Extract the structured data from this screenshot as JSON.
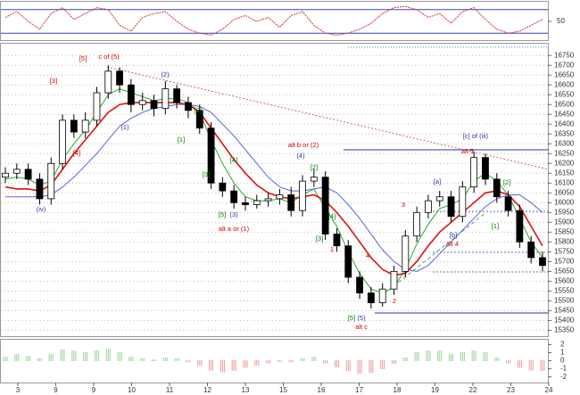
{
  "chart_data": [
    {
      "type": "line",
      "values": [
        60,
        75,
        50,
        30,
        70,
        85,
        55,
        70,
        85,
        80,
        40,
        25,
        60,
        70,
        75,
        50,
        30,
        20,
        15,
        30,
        55,
        65,
        50,
        60,
        35,
        65,
        75,
        40,
        20,
        15,
        20,
        30,
        45,
        70,
        85,
        88,
        80,
        60,
        70,
        45,
        75,
        85,
        55,
        30,
        20,
        25,
        40,
        55
      ],
      "color": "#d03030",
      "levels": [
        20,
        80
      ],
      "ylim": [
        0,
        100
      ],
      "yticks": [
        50
      ]
    },
    {
      "type": "candlestick",
      "open": [
        16130,
        16150,
        16170,
        16120,
        16020,
        16200,
        16420,
        16360,
        16420,
        16560,
        16670,
        16600,
        16500,
        16520,
        16480,
        16580,
        16510,
        16470,
        16380,
        16100,
        16060,
        16000,
        15990,
        16010,
        16020,
        16040,
        15960,
        16110,
        16130,
        15840,
        15780,
        15620,
        15540,
        15490,
        15560,
        15650,
        15830,
        15950,
        16010,
        16030,
        15930,
        16080,
        16230,
        16120,
        16030,
        15960,
        15800,
        15720
      ],
      "high": [
        16180,
        16200,
        16200,
        16150,
        16230,
        16450,
        16450,
        16460,
        16590,
        16700,
        16690,
        16630,
        16560,
        16550,
        16620,
        16600,
        16540,
        16500,
        16410,
        16130,
        16090,
        16030,
        16040,
        16050,
        16070,
        16080,
        16140,
        16170,
        16160,
        15870,
        15810,
        15650,
        15570,
        15590,
        15680,
        15860,
        15980,
        16040,
        16060,
        16060,
        16110,
        16260,
        16250,
        16150,
        16060,
        15990,
        15830,
        15750
      ],
      "low": [
        16100,
        16120,
        16090,
        15990,
        15990,
        16170,
        16330,
        16330,
        16390,
        16530,
        16560,
        16460,
        16470,
        16440,
        16450,
        16480,
        16430,
        16350,
        16070,
        16030,
        15970,
        15960,
        15970,
        15980,
        15990,
        15930,
        15930,
        16080,
        15810,
        15750,
        15590,
        15510,
        15460,
        15470,
        15530,
        15620,
        15800,
        15920,
        15980,
        15900,
        15900,
        16050,
        16090,
        16000,
        15930,
        15770,
        15690,
        15650
      ],
      "close": [
        16150,
        16170,
        16120,
        16020,
        16200,
        16420,
        16360,
        16420,
        16560,
        16670,
        16600,
        16500,
        16520,
        16480,
        16580,
        16510,
        16470,
        16380,
        16100,
        16060,
        16000,
        15990,
        16010,
        16020,
        16040,
        15960,
        16110,
        16130,
        15840,
        15780,
        15620,
        15540,
        15490,
        15560,
        15650,
        15830,
        15950,
        16010,
        16030,
        15930,
        16080,
        16230,
        16120,
        16030,
        15960,
        15800,
        15720,
        15680
      ],
      "series": [
        {
          "color": "#2faa2f",
          "values": [
            16120,
            16130,
            16120,
            16090,
            16110,
            16220,
            16300,
            16370,
            16460,
            16550,
            16580,
            16560,
            16540,
            16520,
            16530,
            16530,
            16510,
            16460,
            16320,
            16200,
            16100,
            16030,
            16010,
            16010,
            16020,
            16000,
            16040,
            16070,
            15970,
            15880,
            15750,
            15640,
            15560,
            15540,
            15570,
            15660,
            15790,
            15890,
            15970,
            15990,
            16020,
            16110,
            16150,
            16110,
            16040,
            15920,
            15800,
            15720
          ]
        },
        {
          "color": "#dd1111",
          "values": [
            16080,
            16070,
            16070,
            16060,
            16090,
            16170,
            16250,
            16320,
            16390,
            16460,
            16500,
            16510,
            16510,
            16510,
            16510,
            16510,
            16500,
            16460,
            16380,
            16300,
            16220,
            16150,
            16090,
            16050,
            16030,
            16020,
            16030,
            16040,
            16010,
            15950,
            15880,
            15800,
            15720,
            15660,
            15630,
            15640,
            15700,
            15780,
            15850,
            15900,
            15950,
            16000,
            16050,
            16060,
            16040,
            15980,
            15880,
            15780
          ]
        },
        {
          "color": "#5566dd",
          "values": [
            16030,
            16030,
            16030,
            16030,
            16040,
            16080,
            16130,
            16190,
            16250,
            16320,
            16390,
            16430,
            16460,
            16480,
            16490,
            16500,
            16500,
            16490,
            16460,
            16400,
            16340,
            16270,
            16200,
            16130,
            16080,
            16060,
            16060,
            16070,
            16080,
            16050,
            15990,
            15920,
            15840,
            15760,
            15700,
            15660,
            15650,
            15680,
            15740,
            15800,
            15860,
            15920,
            15980,
            16020,
            16040,
            16040,
            16000,
            15950
          ]
        }
      ],
      "annotations": [
        {
          "text": "[5]",
          "color": "#d00000"
        },
        {
          "text": "c of (5)",
          "color": "#d00000"
        },
        {
          "text": "[3]",
          "color": "#d00000"
        },
        {
          "text": "[4]",
          "color": "#d00000"
        },
        {
          "text": "(iv)",
          "color": "#3333aa"
        },
        {
          "text": "(1)",
          "color": "#3333aa"
        },
        {
          "text": "(2)",
          "color": "#3333aa"
        },
        {
          "text": "[1]",
          "color": "#008000"
        },
        {
          "text": "[2]",
          "color": "#008000"
        },
        {
          "text": "[3]",
          "color": "#008000"
        },
        {
          "text": "[4]",
          "color": "#008000"
        },
        {
          "text": "[5]",
          "color": "#008000"
        },
        {
          "text": "(3)",
          "color": "#3333aa"
        },
        {
          "text": "alt a or (1)",
          "color": "#d00000"
        },
        {
          "text": "alt b or (2)",
          "color": "#d00000"
        },
        {
          "text": "(4)",
          "color": "#3333aa"
        },
        {
          "text": "[2]",
          "color": "#008000"
        },
        {
          "text": "[4]",
          "color": "#008000"
        },
        {
          "text": "[3]",
          "color": "#008000"
        },
        {
          "text": "[c] of (iii)",
          "color": "#3333aa"
        },
        {
          "text": "alt 5",
          "color": "#d00000"
        },
        {
          "text": "[a]",
          "color": "#3333aa"
        },
        {
          "text": "[b]",
          "color": "#3333aa"
        },
        {
          "text": "alt 4",
          "color": "#d00000"
        },
        {
          "text": "[1]",
          "color": "#008000"
        },
        {
          "text": "[2]",
          "color": "#008000"
        },
        {
          "text": "[5]",
          "color": "#008000"
        },
        {
          "text": "(5)",
          "color": "#3333aa"
        },
        {
          "text": "alt c",
          "color": "#d00000"
        },
        {
          "text": "1",
          "color": "#d00000"
        },
        {
          "text": "2",
          "color": "#d00000"
        },
        {
          "text": "3",
          "color": "#d00000"
        },
        {
          "text": "4",
          "color": "#d00000"
        }
      ],
      "ylim": [
        15320,
        16810
      ],
      "yticks": [
        16750,
        16700,
        16650,
        16600,
        16550,
        16500,
        16450,
        16400,
        16350,
        16300,
        16250,
        16200,
        16150,
        16100,
        16050,
        16000,
        15950,
        15900,
        15850,
        15800,
        15750,
        15700,
        15650,
        15600,
        15550,
        15500,
        15450,
        15400,
        15350
      ],
      "grid": true
    },
    {
      "type": "bar",
      "values": [
        0.5,
        0.8,
        0.6,
        0.3,
        0.9,
        1.4,
        1.2,
        1.0,
        1.3,
        1.5,
        1.0,
        0.5,
        0.3,
        0.2,
        0.4,
        0.3,
        -0.2,
        -0.6,
        -1.2,
        -1.4,
        -1.2,
        -0.9,
        -0.6,
        -0.3,
        -0.1,
        -0.2,
        0.3,
        0.5,
        -0.3,
        -0.8,
        -1.3,
        -1.6,
        -1.5,
        -1.0,
        -0.4,
        0.4,
        1.0,
        1.3,
        1.2,
        0.9,
        1.0,
        1.3,
        1.0,
        0.4,
        -0.3,
        -0.9,
        -1.2,
        -1.3
      ],
      "positive_color": "#33aa33",
      "negative_color": "#dd3333",
      "ylim": [
        -2.7,
        2.6
      ],
      "yticks": [
        2,
        1,
        0,
        -1,
        -2
      ],
      "x_labels": [
        "3",
        "9",
        "9",
        "10",
        "11",
        "12",
        "13",
        "15",
        "16",
        "17",
        "18",
        "19",
        "22",
        "23",
        "24"
      ]
    }
  ]
}
